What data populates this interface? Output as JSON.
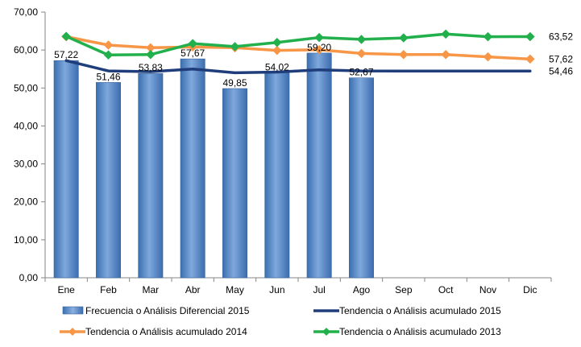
{
  "chart_data": {
    "type": "bar",
    "title": "",
    "xlabel": "",
    "ylabel": "",
    "ylim": [
      0,
      70
    ],
    "ytick_step": 10,
    "ytick_labels": [
      "0,00",
      "10,00",
      "20,00",
      "30,00",
      "40,00",
      "50,00",
      "60,00",
      "70,00"
    ],
    "categories": [
      "Ene",
      "Feb",
      "Mar",
      "Abr",
      "May",
      "Jun",
      "Jul",
      "Ago",
      "Sep",
      "Oct",
      "Nov",
      "Dic"
    ],
    "grid": false,
    "legend_position": "bottom",
    "series": [
      {
        "name": "Frecuencia o Análisis Diferencial 2015",
        "kind": "bar",
        "color": "#4F81BD",
        "values": [
          57.22,
          51.46,
          53.83,
          57.67,
          49.85,
          54.02,
          59.2,
          52.67,
          null,
          null,
          null,
          null
        ],
        "labels": [
          "57,22",
          "51,46",
          "53,83",
          "57,67",
          "49,85",
          "54,02",
          "59,20",
          "52,67",
          "",
          "",
          "",
          ""
        ]
      },
      {
        "name": "Tendencia o Análisis acumulado 2015",
        "kind": "line",
        "color": "#1F3D7A",
        "marker": "none",
        "values": [
          57.2,
          54.5,
          54.3,
          55.0,
          54.0,
          54.2,
          54.8,
          54.5,
          54.46,
          54.46,
          54.46,
          54.46
        ],
        "end_label": "54,46"
      },
      {
        "name": "Tendencia o Análisis acumulado 2014",
        "kind": "line",
        "color": "#F79646",
        "marker": "diamond",
        "values": [
          63.5,
          61.3,
          60.6,
          60.8,
          60.6,
          59.9,
          60.1,
          59.1,
          58.8,
          58.8,
          58.2,
          57.62
        ],
        "end_label": "57,62"
      },
      {
        "name": "Tendencia o Análisis acumulado 2013",
        "kind": "line",
        "color": "#21B04B",
        "marker": "diamond",
        "values": [
          63.6,
          58.7,
          58.8,
          61.7,
          60.9,
          62.0,
          63.3,
          62.8,
          63.2,
          64.2,
          63.5,
          63.52
        ],
        "end_label": "63,52"
      }
    ]
  }
}
